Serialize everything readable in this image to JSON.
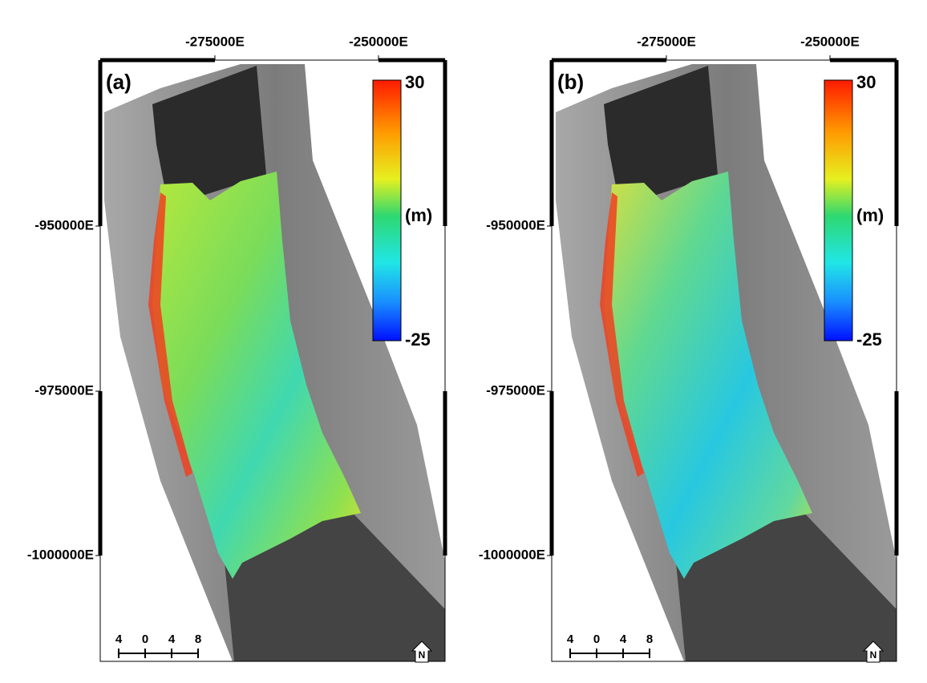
{
  "axes": {
    "x_ticks": [
      "-275000E",
      "-250000E"
    ],
    "y_ticks": [
      "-950000E",
      "-975000E",
      "-1000000E"
    ]
  },
  "panels": [
    {
      "label": "(a)",
      "colorbar": {
        "max": "30",
        "unit": "(m)",
        "min": "-25"
      },
      "scale_bar": [
        "4",
        "0",
        "4",
        "8"
      ],
      "north": "N"
    },
    {
      "label": "(b)",
      "colorbar": {
        "max": "30",
        "unit": "(m)",
        "min": "-25"
      },
      "scale_bar": [
        "4",
        "0",
        "4",
        "8"
      ],
      "north": "N"
    }
  ]
}
